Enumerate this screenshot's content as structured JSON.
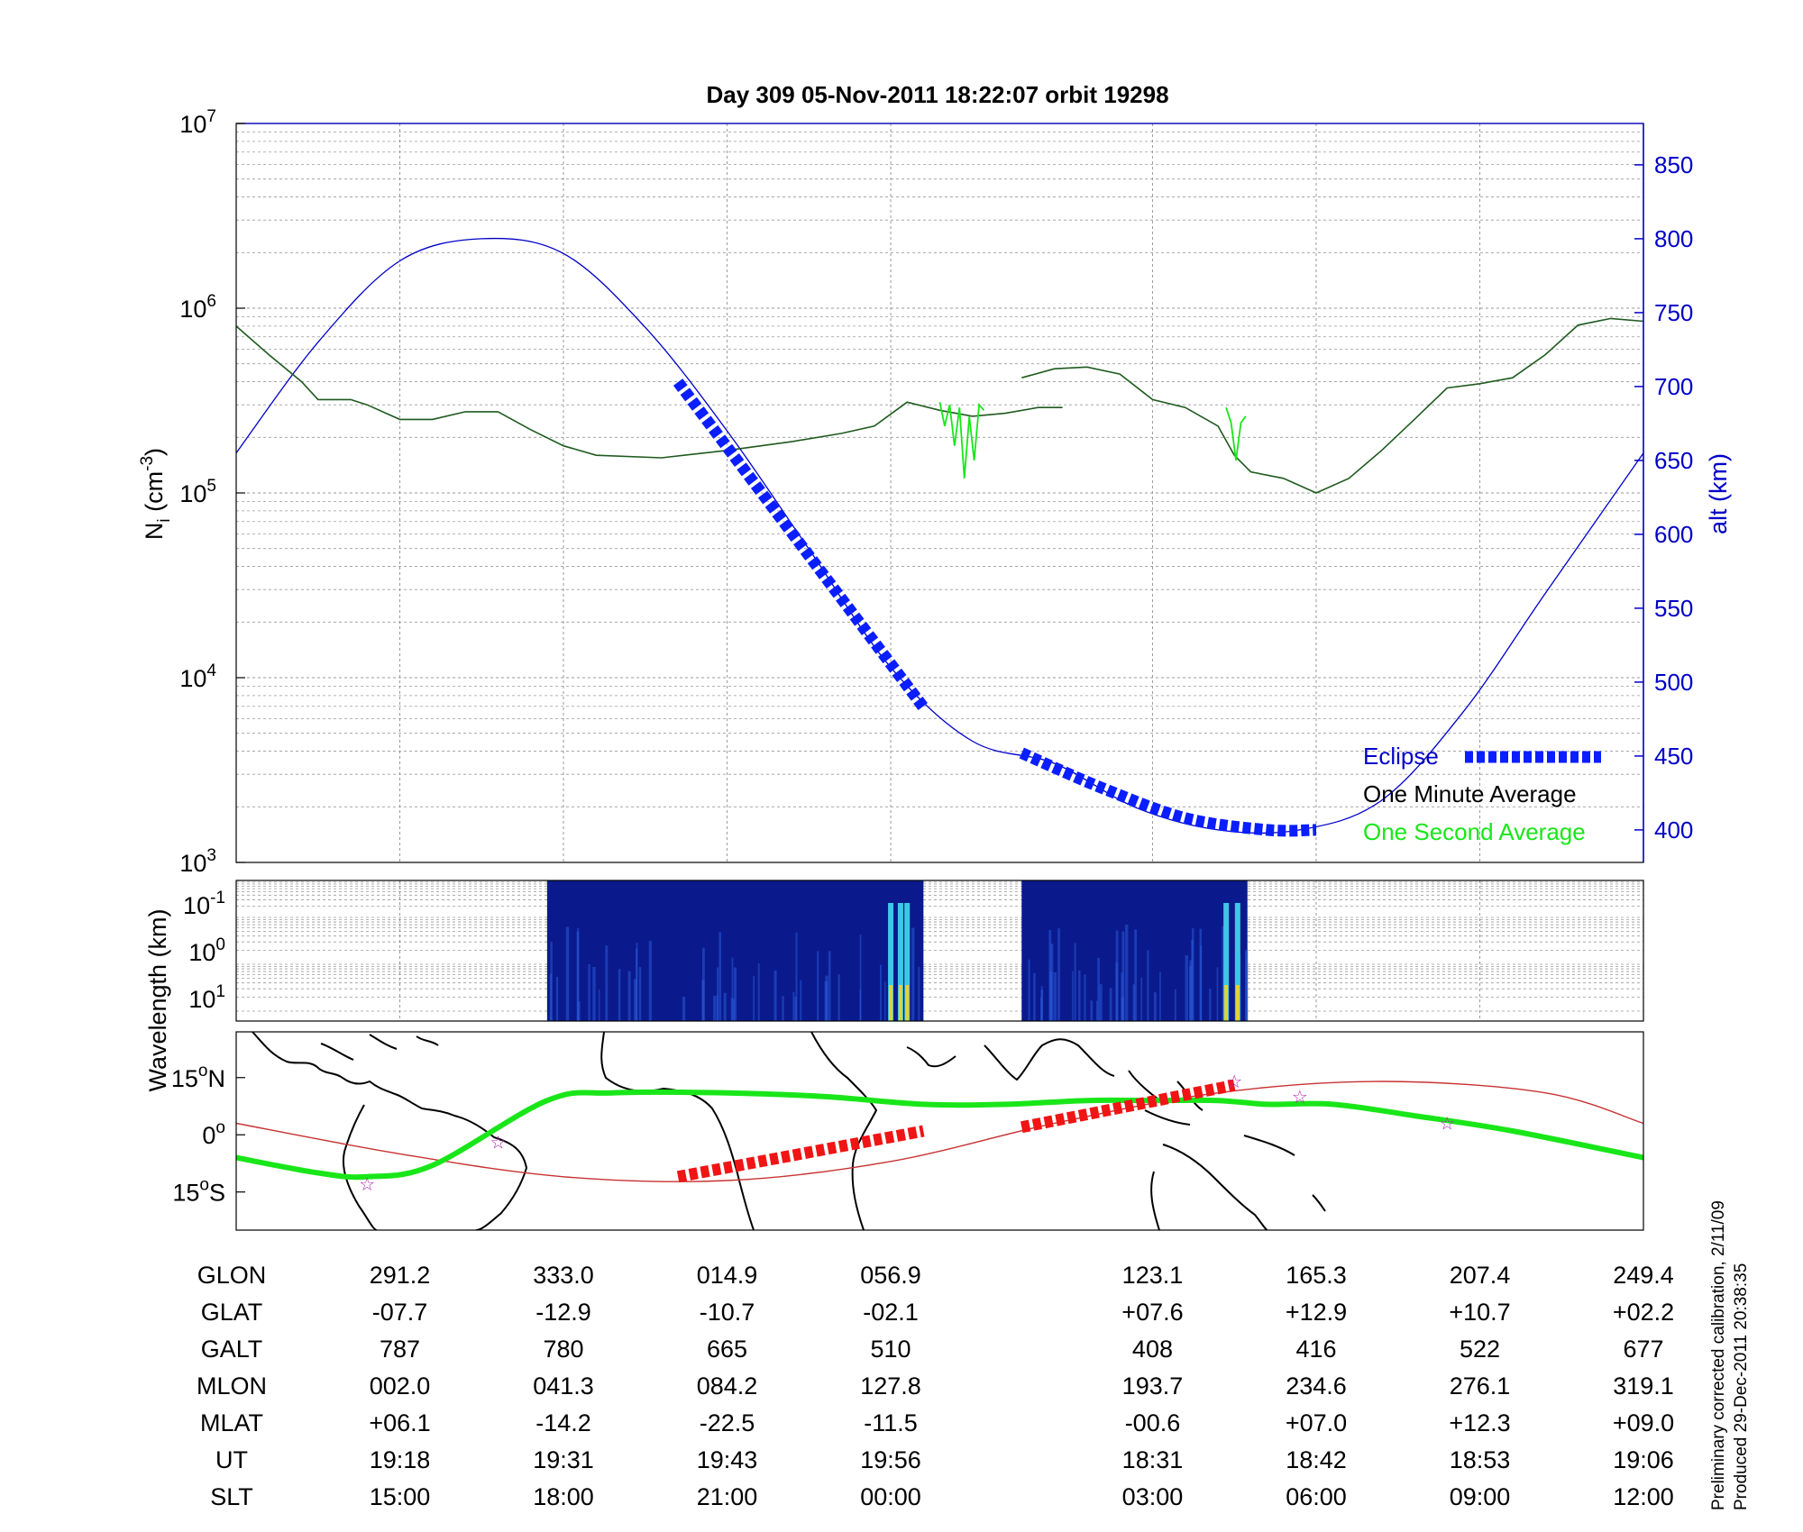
{
  "title": "Day 309  05-Nov-2011 18:22:07   orbit 19298",
  "colors": {
    "density_line": "#1e5a1e",
    "one_second": "#19e619",
    "altitude": "#0000c8",
    "eclipse": "#0a1eff",
    "track_highlight": "#f01414",
    "footprint": "#c83232",
    "grid": "#9a9a9a",
    "spectrogram_bg": "#0a1a8c"
  },
  "chart_data": [
    {
      "type": "line",
      "title": "Day 309  05-Nov-2011 18:22:07   orbit 19298",
      "ylabel": "N_i (cm^-3)",
      "ylabel_main": "N",
      "ylabel_sub": "i",
      "ylabel_unit": " (cm",
      "ylabel_exp": "-3",
      "ylabel_close": ")",
      "yscale": "log",
      "ylim": [
        1000,
        10000000
      ],
      "y_ticks": [
        {
          "value": 1000,
          "base": "10",
          "exp": "3"
        },
        {
          "value": 10000,
          "base": "10",
          "exp": "4"
        },
        {
          "value": 100000,
          "base": "10",
          "exp": "5"
        },
        {
          "value": 1000000,
          "base": "10",
          "exp": "6"
        },
        {
          "value": 10000000,
          "base": "10",
          "exp": "7"
        }
      ],
      "y2label": "alt (km)",
      "y2lim": [
        378,
        878
      ],
      "y2_ticks": [
        400,
        450,
        500,
        550,
        600,
        650,
        700,
        750,
        800,
        850
      ],
      "grid": true,
      "legend_position": "bottom-right",
      "legend": {
        "eclipse": "Eclipse",
        "one_minute": "One Minute Average",
        "one_second": "One Second Average"
      },
      "x_index_range": [
        0,
        8.6
      ],
      "series": [
        {
          "name": "One Minute Average",
          "x": [
            0,
            0.2,
            0.4,
            0.5,
            0.7,
            0.8,
            1.0,
            1.2,
            1.4,
            1.6,
            1.8,
            2.0,
            2.2,
            2.6,
            3.0,
            3.4,
            3.7,
            3.9,
            4.1,
            4.3,
            4.5,
            4.7,
            4.9,
            5.05
          ],
          "y": [
            800000,
            560000,
            400000,
            320000,
            320000,
            300000,
            250000,
            250000,
            275000,
            275000,
            220000,
            180000,
            160000,
            155000,
            170000,
            190000,
            210000,
            230000,
            310000,
            280000,
            260000,
            270000,
            290000,
            290000
          ]
        },
        {
          "name": "One Minute Average",
          "x": [
            4.8,
            5.0,
            5.2,
            5.4,
            5.6,
            5.8,
            6.0,
            6.1,
            6.2,
            6.4,
            6.6,
            6.8,
            7.0,
            7.2,
            7.4,
            7.6,
            7.8,
            8.0,
            8.2,
            8.4,
            8.6
          ],
          "y": [
            420000,
            470000,
            480000,
            440000,
            320000,
            290000,
            230000,
            160000,
            130000,
            120000,
            100000,
            120000,
            170000,
            250000,
            370000,
            390000,
            420000,
            560000,
            810000,
            880000,
            850000
          ]
        },
        {
          "name": "One Second Average",
          "x": [
            4.3,
            4.33,
            4.36,
            4.39,
            4.42,
            4.45,
            4.48,
            4.51,
            4.54,
            4.57
          ],
          "y": [
            310000,
            230000,
            300000,
            180000,
            290000,
            120000,
            260000,
            150000,
            300000,
            280000
          ]
        },
        {
          "name": "One Second Average",
          "x": [
            6.05,
            6.08,
            6.11,
            6.14,
            6.17
          ],
          "y": [
            290000,
            240000,
            150000,
            240000,
            260000
          ]
        }
      ],
      "altitude": {
        "x": [
          0,
          0.5,
          1.0,
          1.5,
          2.0,
          2.5,
          3.0,
          3.5,
          4.0,
          4.5,
          5.0,
          5.5,
          6.0,
          6.5,
          7.0,
          7.5,
          8.0,
          8.6
        ],
        "y": [
          655,
          730,
          785,
          800,
          790,
          740,
          670,
          590,
          510,
          460,
          445,
          415,
          400,
          400,
          420,
          480,
          560,
          655
        ]
      },
      "eclipse_segments": [
        {
          "x": [
            2.7,
            4.2
          ],
          "y": [
            703,
            483
          ]
        },
        {
          "x": [
            4.8,
            5.3,
            5.8,
            6.3,
            6.6
          ],
          "y": [
            452,
            428,
            408,
            400,
            400
          ]
        }
      ]
    },
    {
      "type": "heatmap",
      "ylabel": "Wavelength (km)",
      "yscale": "log",
      "y_ticks": [
        {
          "base": "10",
          "exp": "-1"
        },
        {
          "base": "10",
          "exp": "0"
        },
        {
          "base": "10",
          "exp": "1"
        }
      ],
      "panels_x": [
        [
          1.9,
          4.2
        ],
        [
          4.8,
          6.18
        ]
      ],
      "bright_bursts_x": [
        4.0,
        4.06,
        4.1,
        6.05,
        6.12
      ]
    },
    {
      "type": "map",
      "y_ticks": [
        {
          "value": 15,
          "label": "15",
          "deg": "o",
          "hemi": "N"
        },
        {
          "value": 0,
          "label": "0",
          "deg": "o",
          "hemi": ""
        },
        {
          "value": -15,
          "label": "15",
          "deg": "o",
          "hemi": "S"
        }
      ],
      "ylim": [
        -25,
        27
      ],
      "track_x": [
        0,
        0.5,
        0.8,
        1.2,
        1.9,
        2.3,
        3.0,
        3.6,
        4.2,
        4.7,
        5.2,
        5.6,
        6.0,
        6.3,
        6.7,
        7.2,
        7.8,
        8.6
      ],
      "track_y": [
        -6,
        -10,
        -11,
        -8,
        9,
        11,
        11,
        10,
        8,
        8,
        9,
        9,
        9,
        8,
        8,
        5,
        1,
        -6
      ],
      "footprint_x": [
        0,
        1.0,
        2.0,
        3.0,
        4.0,
        5.0,
        6.0,
        7.0,
        8.0,
        8.6
      ],
      "footprint_y": [
        3,
        -5,
        -11,
        -12,
        -7,
        3,
        11,
        14,
        11,
        3
      ],
      "highlight_segments": [
        {
          "x": [
            2.7,
            4.2
          ],
          "y": [
            -11,
            1
          ]
        },
        {
          "x": [
            4.8,
            6.1
          ],
          "y": [
            2,
            13
          ]
        }
      ],
      "stars": [
        {
          "x": 0.8,
          "y": -13
        },
        {
          "x": 1.6,
          "y": -2
        },
        {
          "x": 6.1,
          "y": 14
        },
        {
          "x": 6.5,
          "y": 10
        },
        {
          "x": 7.4,
          "y": 3
        }
      ]
    }
  ],
  "table": {
    "columns_x": [
      1,
      2,
      3,
      4,
      5.6,
      6.6,
      7.6,
      8.6
    ],
    "rows": [
      {
        "label": "GLON",
        "values": [
          "291.2",
          "333.0",
          "014.9",
          "056.9",
          "123.1",
          "165.3",
          "207.4",
          "249.4"
        ]
      },
      {
        "label": "GLAT",
        "values": [
          "-07.7",
          "-12.9",
          "-10.7",
          "-02.1",
          "+07.6",
          "+12.9",
          "+10.7",
          "+02.2"
        ]
      },
      {
        "label": "GALT",
        "values": [
          "787",
          "780",
          "665",
          "510",
          "408",
          "416",
          "522",
          "677"
        ]
      },
      {
        "label": "MLON",
        "values": [
          "002.0",
          "041.3",
          "084.2",
          "127.8",
          "193.7",
          "234.6",
          "276.1",
          "319.1"
        ]
      },
      {
        "label": "MLAT",
        "values": [
          "+06.1",
          "-14.2",
          "-22.5",
          "-11.5",
          "-00.6",
          "+07.0",
          "+12.3",
          "+09.0"
        ]
      },
      {
        "label": "UT",
        "values": [
          "19:18",
          "19:31",
          "19:43",
          "19:56",
          "18:31",
          "18:42",
          "18:53",
          "19:06"
        ]
      },
      {
        "label": "SLT",
        "values": [
          "15:00",
          "18:00",
          "21:00",
          "00:00",
          "03:00",
          "06:00",
          "09:00",
          "12:00"
        ]
      }
    ]
  },
  "footer": {
    "line1": "Preliminary corrected calibration, 2/11/09",
    "line2": "Produced 29-Dec-2011 20:38:35"
  }
}
